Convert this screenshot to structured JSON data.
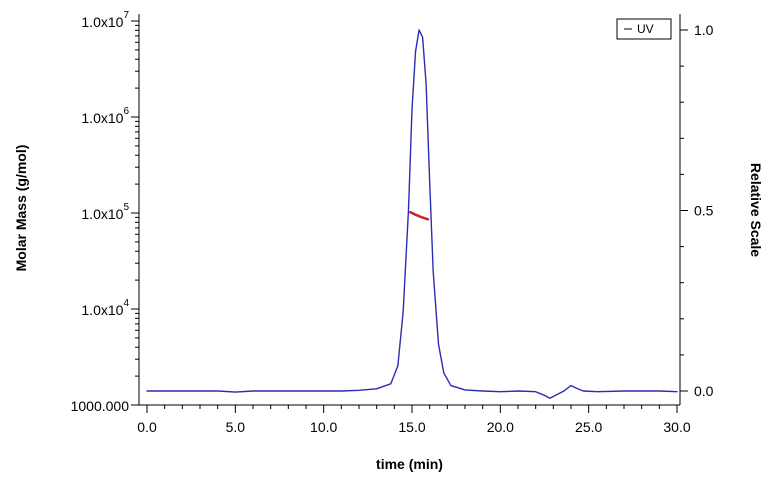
{
  "chart_data": {
    "type": "line",
    "xlabel": "time (min)",
    "ylabel_left": "Molar Mass (g/mol)",
    "ylabel_right": "Relative Scale",
    "xlim": [
      0,
      30
    ],
    "x_ticks": [
      0,
      5,
      10,
      15,
      20,
      25,
      30
    ],
    "x_tick_labels": [
      "0.0",
      "5.0",
      "10.0",
      "15.0",
      "20.0",
      "25.0",
      "30.0"
    ],
    "y_left_scale": "log",
    "y_left_lim": [
      1000,
      10000000
    ],
    "y_left_ticks": [
      {
        "value": 1000,
        "mantissa": "1000.000",
        "exp": ""
      },
      {
        "value": 10000,
        "mantissa": "1.0x10",
        "exp": "4"
      },
      {
        "value": 100000,
        "mantissa": "1.0x10",
        "exp": "5"
      },
      {
        "value": 1000000,
        "mantissa": "1.0x10",
        "exp": "6"
      },
      {
        "value": 10000000,
        "mantissa": "1.0x10",
        "exp": "7"
      }
    ],
    "y_right_lim": [
      -0.02,
      1.04
    ],
    "y_right_ticks": [
      0.0,
      0.5,
      1.0
    ],
    "y_right_tick_labels": [
      "0.0",
      "0.5",
      "1.0"
    ],
    "legend": {
      "position": "top-right",
      "entries": [
        "UV"
      ]
    },
    "series": [
      {
        "name": "UV",
        "axis": "right",
        "color": "#2b2bb5",
        "x": [
          0,
          2,
          4,
          5,
          6,
          8,
          10,
          11,
          12,
          13,
          13.8,
          14.2,
          14.5,
          14.8,
          15.0,
          15.2,
          15.4,
          15.6,
          15.8,
          16.0,
          16.2,
          16.5,
          16.8,
          17.2,
          18.0,
          19.0,
          20.0,
          21.0,
          22.0,
          22.5,
          22.8,
          23.2,
          23.6,
          24.0,
          24.3,
          24.7,
          25.5,
          27.0,
          28.0,
          29.0,
          30.0
        ],
        "y": [
          0.0,
          0.0,
          0.0,
          -0.003,
          0.0,
          0.0,
          0.0,
          0.0,
          0.002,
          0.006,
          0.02,
          0.07,
          0.22,
          0.5,
          0.78,
          0.94,
          1.0,
          0.98,
          0.85,
          0.58,
          0.33,
          0.13,
          0.05,
          0.015,
          0.003,
          0.0,
          -0.002,
          0.0,
          -0.002,
          -0.012,
          -0.02,
          -0.01,
          0.0,
          0.015,
          0.008,
          0.0,
          -0.002,
          0.0,
          0.0,
          0.0,
          -0.002
        ]
      },
      {
        "name": "Molar Mass",
        "axis": "left",
        "color": "#cc1f2a",
        "x": [
          14.9,
          15.2,
          15.5,
          15.9
        ],
        "y": [
          102000,
          96000,
          91000,
          86000
        ]
      }
    ]
  }
}
